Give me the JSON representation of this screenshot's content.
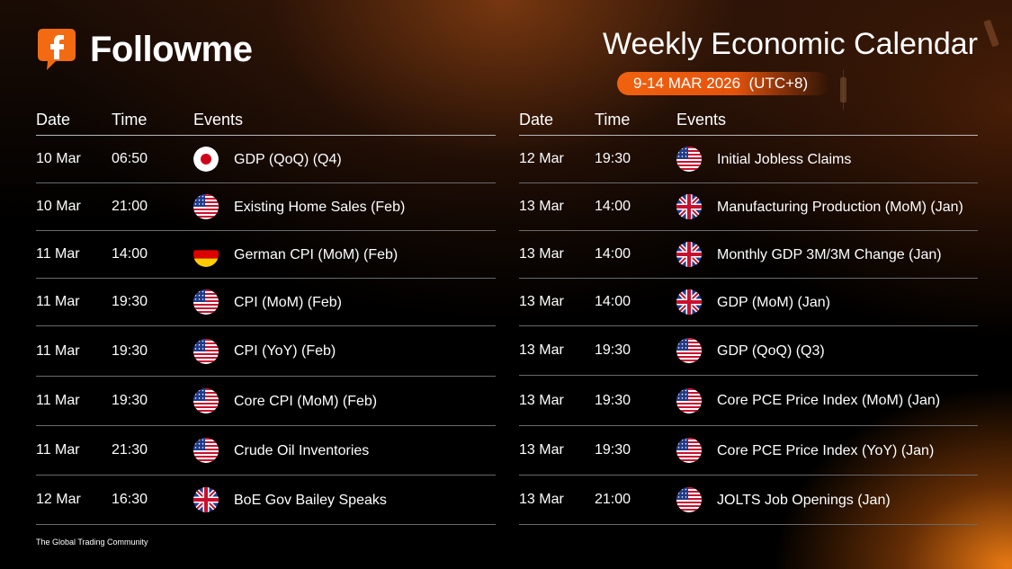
{
  "brand": {
    "name": "Followme",
    "logo_letter": "f",
    "accent": "#f26b12"
  },
  "header": {
    "title": "Weekly Economic Calendar",
    "period": "9-14 MAR 2026  (UTC+8)"
  },
  "columns": {
    "date": "Date",
    "time": "Time",
    "events": "Events"
  },
  "left_rows": [
    {
      "date": "10 Mar",
      "time": "06:50",
      "flag": "jp",
      "event": "GDP (QoQ) (Q4)"
    },
    {
      "date": "10 Mar",
      "time": "21:00",
      "flag": "us",
      "event": "Existing Home Sales (Feb)"
    },
    {
      "date": "11 Mar",
      "time": "14:00",
      "flag": "de",
      "event": "German CPI (MoM) (Feb)"
    },
    {
      "date": "11 Mar",
      "time": "19:30",
      "flag": "us",
      "event": "CPI (MoM) (Feb)"
    },
    {
      "date": "11 Mar",
      "time": "19:30",
      "flag": "us",
      "event": "CPI (YoY) (Feb)"
    },
    {
      "date": "11 Mar",
      "time": "19:30",
      "flag": "us",
      "event": "Core CPI (MoM) (Feb)"
    },
    {
      "date": "11 Mar",
      "time": "21:30",
      "flag": "us",
      "event": "Crude Oil Inventories"
    },
    {
      "date": "12 Mar",
      "time": "16:30",
      "flag": "gb",
      "event": "BoE Gov Bailey Speaks"
    }
  ],
  "right_rows": [
    {
      "date": "12 Mar",
      "time": "19:30",
      "flag": "us",
      "event": "Initial Jobless Claims"
    },
    {
      "date": "13 Mar",
      "time": "14:00",
      "flag": "gb",
      "event": "Manufacturing Production (MoM) (Jan)"
    },
    {
      "date": "13 Mar",
      "time": "14:00",
      "flag": "gb",
      "event": "Monthly GDP 3M/3M Change (Jan)"
    },
    {
      "date": "13 Mar",
      "time": "14:00",
      "flag": "gb",
      "event": " GDP (MoM) (Jan)"
    },
    {
      "date": "13 Mar",
      "time": "19:30",
      "flag": "us",
      "event": "GDP (QoQ) (Q3)"
    },
    {
      "date": "13 Mar",
      "time": "19:30",
      "flag": "us",
      "event": "Core PCE Price Index (MoM) (Jan)"
    },
    {
      "date": "13 Mar",
      "time": "19:30",
      "flag": "us",
      "event": "Core PCE Price Index (YoY) (Jan)"
    },
    {
      "date": "13 Mar",
      "time": "21:00",
      "flag": "us",
      "event": "JOLTS Job Openings (Jan)"
    }
  ],
  "flag_icons": {
    "jp": "japan-flag-icon",
    "us": "usa-flag-icon",
    "de": "germany-flag-icon",
    "gb": "uk-flag-icon"
  },
  "footer": {
    "tagline": "The Global Trading Community"
  }
}
